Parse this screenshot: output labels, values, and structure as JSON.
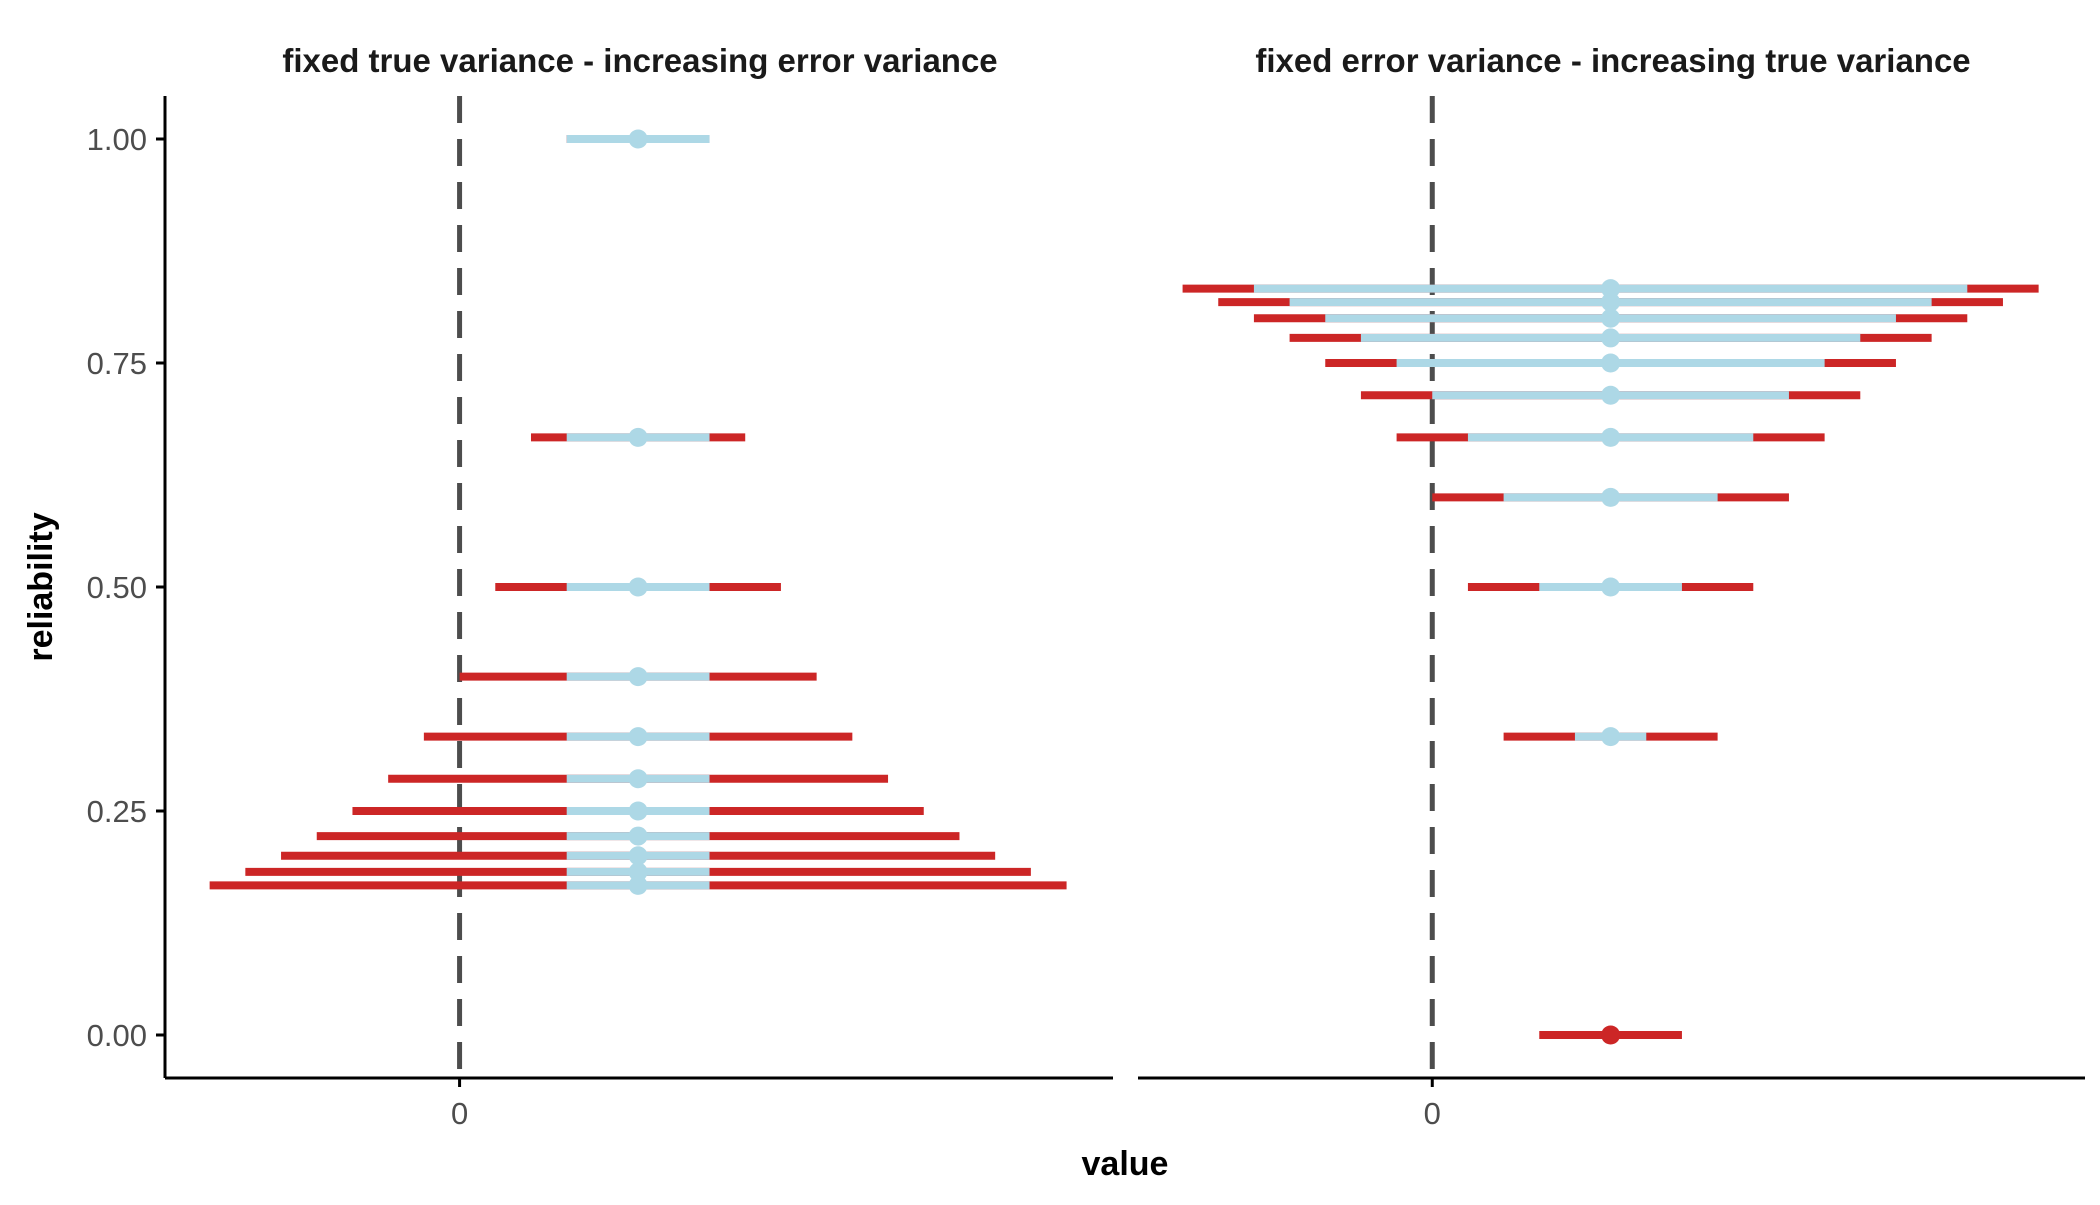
{
  "chart_data": {
    "type": "scatter",
    "subtype": "interval-plot",
    "xlabel": "value",
    "ylabel": "reliability",
    "x_tick_values": [
      0
    ],
    "y_ticks": [
      0.0,
      0.25,
      0.5,
      0.75,
      1.0
    ],
    "y_tick_labels": [
      "0.00",
      "0.25",
      "0.50",
      "0.75",
      "1.00"
    ],
    "ylim": [
      -0.048,
      1.048
    ],
    "reference_line": {
      "x": 0,
      "style": "dashed"
    },
    "grid": false,
    "colors": {
      "inner_interval": "#add8e6",
      "outer_interval": "#cc2626",
      "reference_line": "#4d4d4d",
      "axis": "#000000"
    },
    "panels": [
      {
        "title": "fixed true variance - increasing error variance",
        "xlim": [
          -1.65,
          3.66
        ],
        "points": [
          {
            "reliability": 1.0,
            "estimate": 1.0,
            "inner": [
              0.6,
              1.4
            ],
            "outer": [
              0.6,
              1.4
            ]
          },
          {
            "reliability": 0.667,
            "estimate": 1.0,
            "inner": [
              0.6,
              1.4
            ],
            "outer": [
              0.4,
              1.6
            ]
          },
          {
            "reliability": 0.5,
            "estimate": 1.0,
            "inner": [
              0.6,
              1.4
            ],
            "outer": [
              0.2,
              1.8
            ]
          },
          {
            "reliability": 0.4,
            "estimate": 1.0,
            "inner": [
              0.6,
              1.4
            ],
            "outer": [
              0.0,
              2.0
            ]
          },
          {
            "reliability": 0.333,
            "estimate": 1.0,
            "inner": [
              0.6,
              1.4
            ],
            "outer": [
              -0.2,
              2.2
            ]
          },
          {
            "reliability": 0.286,
            "estimate": 1.0,
            "inner": [
              0.6,
              1.4
            ],
            "outer": [
              -0.4,
              2.4
            ]
          },
          {
            "reliability": 0.25,
            "estimate": 1.0,
            "inner": [
              0.6,
              1.4
            ],
            "outer": [
              -0.6,
              2.6
            ]
          },
          {
            "reliability": 0.222,
            "estimate": 1.0,
            "inner": [
              0.6,
              1.4
            ],
            "outer": [
              -0.8,
              2.8
            ]
          },
          {
            "reliability": 0.2,
            "estimate": 1.0,
            "inner": [
              0.6,
              1.4
            ],
            "outer": [
              -1.0,
              3.0
            ]
          },
          {
            "reliability": 0.182,
            "estimate": 1.0,
            "inner": [
              0.6,
              1.4
            ],
            "outer": [
              -1.2,
              3.2
            ]
          },
          {
            "reliability": 0.167,
            "estimate": 1.0,
            "inner": [
              0.6,
              1.4
            ],
            "outer": [
              -1.4,
              3.4
            ]
          }
        ]
      },
      {
        "title": "fixed error variance - increasing true variance",
        "xlim": [
          -1.65,
          3.66
        ],
        "points": [
          {
            "reliability": 0.0,
            "estimate": 1.0,
            "inner": [
              1.0,
              1.0
            ],
            "outer": [
              0.6,
              1.4
            ],
            "estimate_color": "outer"
          },
          {
            "reliability": 0.333,
            "estimate": 1.0,
            "inner": [
              0.8,
              1.2
            ],
            "outer": [
              0.4,
              1.6
            ]
          },
          {
            "reliability": 0.5,
            "estimate": 1.0,
            "inner": [
              0.6,
              1.4
            ],
            "outer": [
              0.2,
              1.8
            ]
          },
          {
            "reliability": 0.6,
            "estimate": 1.0,
            "inner": [
              0.4,
              1.6
            ],
            "outer": [
              0.0,
              2.0
            ]
          },
          {
            "reliability": 0.667,
            "estimate": 1.0,
            "inner": [
              0.2,
              1.8
            ],
            "outer": [
              -0.2,
              2.2
            ]
          },
          {
            "reliability": 0.714,
            "estimate": 1.0,
            "inner": [
              0.0,
              2.0
            ],
            "outer": [
              -0.4,
              2.4
            ]
          },
          {
            "reliability": 0.75,
            "estimate": 1.0,
            "inner": [
              -0.2,
              2.2
            ],
            "outer": [
              -0.6,
              2.6
            ]
          },
          {
            "reliability": 0.778,
            "estimate": 1.0,
            "inner": [
              -0.4,
              2.4
            ],
            "outer": [
              -0.8,
              2.8
            ]
          },
          {
            "reliability": 0.8,
            "estimate": 1.0,
            "inner": [
              -0.6,
              2.6
            ],
            "outer": [
              -1.0,
              3.0
            ]
          },
          {
            "reliability": 0.818,
            "estimate": 1.0,
            "inner": [
              -0.8,
              2.8
            ],
            "outer": [
              -1.2,
              3.2
            ]
          },
          {
            "reliability": 0.833,
            "estimate": 1.0,
            "inner": [
              -1.0,
              3.0
            ],
            "outer": [
              -1.4,
              3.4
            ]
          }
        ]
      }
    ]
  }
}
